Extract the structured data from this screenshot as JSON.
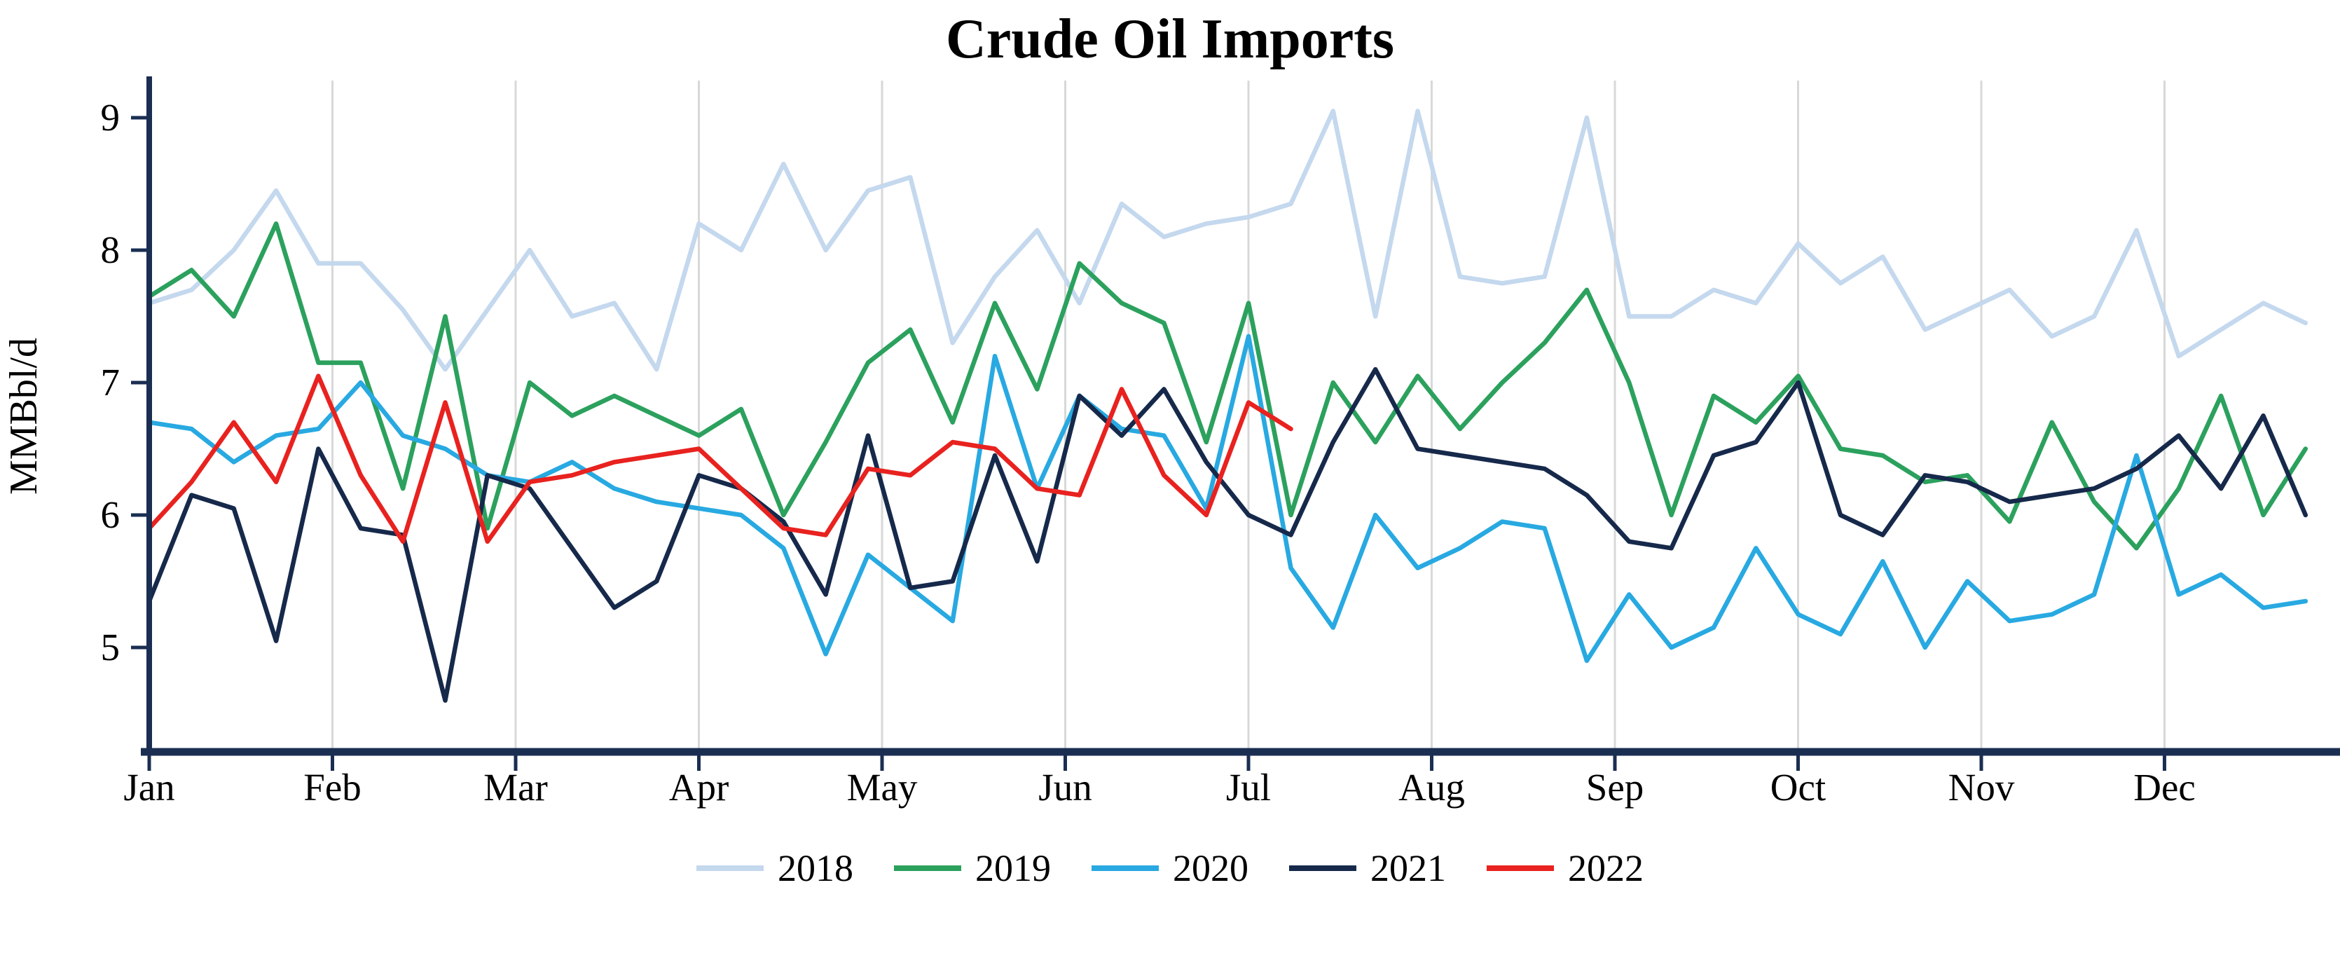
{
  "chart_data": {
    "type": "line",
    "title": "Crude Oil Imports",
    "ylabel": "MMBbl/d",
    "x_tick_labels": [
      "Jan",
      "Feb",
      "Mar",
      "Apr",
      "May",
      "Jun",
      "Jul",
      "Aug",
      "Sep",
      "Oct",
      "Nov",
      "Dec"
    ],
    "yticks": [
      5,
      6,
      7,
      8,
      9
    ],
    "ylim": [
      4.2,
      9.3
    ],
    "x_unit": "week-of-year",
    "grid": "vertical-monthly",
    "legend_position": "bottom-center",
    "axis_color": "#1a2e52",
    "grid_color": "#d8d8d8",
    "series": [
      {
        "name": "2018",
        "color": "#c4d8ee",
        "values": [
          7.6,
          7.7,
          8.0,
          8.45,
          7.9,
          7.9,
          7.55,
          7.1,
          7.55,
          8.0,
          7.5,
          7.6,
          7.1,
          8.2,
          8.0,
          8.65,
          8.0,
          8.45,
          8.55,
          7.3,
          7.8,
          8.15,
          7.6,
          8.35,
          8.1,
          8.2,
          8.25,
          8.35,
          9.05,
          7.5,
          9.05,
          7.8,
          7.75,
          7.8,
          9.0,
          7.5,
          7.5,
          7.7,
          7.6,
          8.05,
          7.75,
          7.95,
          7.4,
          7.55,
          7.7,
          7.35,
          7.5,
          8.15,
          7.2,
          7.4,
          7.6,
          7.45
        ]
      },
      {
        "name": "2019",
        "color": "#2ba15d",
        "values": [
          7.65,
          7.85,
          7.5,
          8.2,
          7.15,
          7.15,
          6.2,
          7.5,
          5.9,
          7.0,
          6.75,
          6.9,
          6.75,
          6.6,
          6.8,
          6.0,
          6.55,
          7.15,
          7.4,
          6.7,
          7.6,
          6.95,
          7.9,
          7.6,
          7.45,
          6.55,
          7.6,
          6.0,
          7.0,
          6.55,
          7.05,
          6.65,
          7.0,
          7.3,
          7.7,
          7.0,
          6.0,
          6.9,
          6.7,
          7.05,
          6.5,
          6.45,
          6.25,
          6.3,
          5.95,
          6.7,
          6.1,
          5.75,
          6.2,
          6.9,
          6.0,
          6.5
        ]
      },
      {
        "name": "2020",
        "color": "#28a9e1",
        "values": [
          6.7,
          6.65,
          6.4,
          6.6,
          6.65,
          7.0,
          6.6,
          6.5,
          6.3,
          6.25,
          6.4,
          6.2,
          6.1,
          6.05,
          6.0,
          5.75,
          4.95,
          5.7,
          5.45,
          5.2,
          7.2,
          6.2,
          6.9,
          6.65,
          6.6,
          6.05,
          7.35,
          5.6,
          5.15,
          6.0,
          5.6,
          5.75,
          5.95,
          5.9,
          4.9,
          5.4,
          5.0,
          5.15,
          5.75,
          5.25,
          5.1,
          5.65,
          5.0,
          5.5,
          5.2,
          5.25,
          5.4,
          6.45,
          5.4,
          5.55,
          5.3,
          5.35
        ]
      },
      {
        "name": "2021",
        "color": "#16294b",
        "values": [
          5.35,
          6.15,
          6.05,
          5.05,
          6.5,
          5.9,
          5.85,
          4.6,
          6.3,
          6.2,
          5.75,
          5.3,
          5.5,
          6.3,
          6.2,
          5.95,
          5.4,
          6.6,
          5.45,
          5.5,
          6.45,
          5.65,
          6.9,
          6.6,
          6.95,
          6.4,
          6.0,
          5.85,
          6.55,
          7.1,
          6.5,
          6.45,
          6.4,
          6.35,
          6.15,
          5.8,
          5.75,
          6.45,
          6.55,
          7.0,
          6.0,
          5.85,
          6.3,
          6.25,
          6.1,
          6.15,
          6.2,
          6.35,
          6.6,
          6.2,
          6.75,
          6.0
        ]
      },
      {
        "name": "2022",
        "color": "#e8221f",
        "values": [
          5.9,
          6.25,
          6.7,
          6.25,
          7.05,
          6.3,
          5.8,
          6.85,
          5.8,
          6.25,
          6.3,
          6.4,
          6.45,
          6.5,
          6.2,
          5.9,
          5.85,
          6.35,
          6.3,
          6.55,
          6.5,
          6.2,
          6.15,
          6.95,
          6.3,
          6.0,
          6.85,
          6.65
        ]
      }
    ]
  }
}
